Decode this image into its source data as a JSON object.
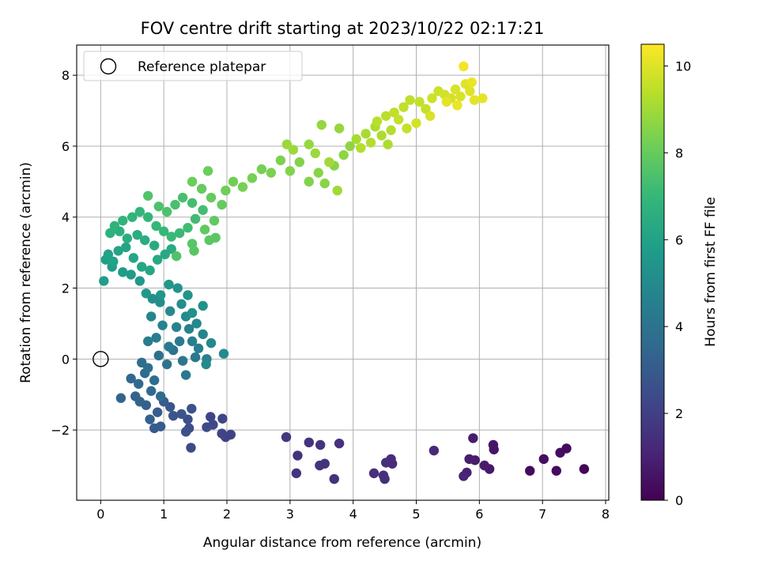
{
  "chart_data": {
    "type": "scatter",
    "title": "FOV centre drift starting at 2023/10/22 02:17:21",
    "xlabel": "Angular distance from reference (arcmin)",
    "ylabel": "Rotation from reference (arcmin)",
    "xlim": [
      -0.38,
      8.05
    ],
    "ylim": [
      -3.98,
      8.85
    ],
    "xticks": [
      0,
      1,
      2,
      3,
      4,
      5,
      6,
      7,
      8
    ],
    "yticks": [
      -2,
      0,
      2,
      4,
      6,
      8
    ],
    "xtick_labels": [
      "0",
      "1",
      "2",
      "3",
      "4",
      "5",
      "6",
      "7",
      "8"
    ],
    "ytick_labels": [
      "−2",
      "0",
      "2",
      "4",
      "6",
      "8"
    ],
    "grid": true,
    "colormap": "viridis",
    "colormap_stops": [
      "#440154",
      "#482878",
      "#3e4989",
      "#31688e",
      "#26828e",
      "#1f9e89",
      "#35b779",
      "#6ece58",
      "#b5de2b",
      "#fde725"
    ],
    "colorbar": {
      "label": "Hours from first FF file",
      "range": [
        0,
        10.5
      ],
      "ticks": [
        0,
        2,
        4,
        6,
        8,
        10
      ],
      "tick_labels": [
        "0",
        "2",
        "4",
        "6",
        "8",
        "10"
      ]
    },
    "legend": {
      "position": "top-left",
      "entries": [
        {
          "label": "Reference platepar",
          "marker": "open-circle"
        }
      ]
    },
    "reference_point": {
      "x": 0,
      "y": 0
    },
    "series": [
      {
        "color_by": "hours",
        "points": [
          [
            7.66,
            -3.1,
            0.1
          ],
          [
            7.38,
            -2.52,
            0.3
          ],
          [
            7.28,
            -2.64,
            0.35
          ],
          [
            7.22,
            -3.15,
            0.3
          ],
          [
            7.02,
            -2.82,
            0.4
          ],
          [
            6.8,
            -3.15,
            0.3
          ],
          [
            6.22,
            -2.42,
            0.6
          ],
          [
            6.23,
            -2.55,
            0.6
          ],
          [
            6.16,
            -3.1,
            0.7
          ],
          [
            6.08,
            -3.0,
            0.8
          ],
          [
            5.9,
            -2.23,
            0.8
          ],
          [
            5.93,
            -2.85,
            0.8
          ],
          [
            5.84,
            -2.82,
            0.9
          ],
          [
            5.8,
            -3.2,
            1.0
          ],
          [
            5.75,
            -3.3,
            1.1
          ],
          [
            5.28,
            -2.58,
            1.2
          ],
          [
            4.6,
            -2.82,
            1.3
          ],
          [
            4.62,
            -2.95,
            1.3
          ],
          [
            4.52,
            -2.92,
            1.4
          ],
          [
            4.5,
            -3.38,
            1.4
          ],
          [
            4.48,
            -3.28,
            1.4
          ],
          [
            4.33,
            -3.22,
            1.4
          ],
          [
            3.78,
            -2.38,
            1.5
          ],
          [
            3.7,
            -3.38,
            1.5
          ],
          [
            3.55,
            -2.95,
            1.6
          ],
          [
            3.47,
            -3.0,
            1.6
          ],
          [
            3.48,
            -2.42,
            1.6
          ],
          [
            3.3,
            -2.35,
            1.6
          ],
          [
            3.12,
            -2.72,
            1.6
          ],
          [
            3.1,
            -3.22,
            1.6
          ],
          [
            2.94,
            -2.2,
            1.7
          ],
          [
            2.06,
            -2.13,
            2.1
          ],
          [
            1.98,
            -2.2,
            2.1
          ],
          [
            1.92,
            -2.1,
            2.2
          ],
          [
            1.93,
            -1.68,
            2.2
          ],
          [
            1.74,
            -1.63,
            2.2
          ],
          [
            1.78,
            -1.85,
            2.3
          ],
          [
            1.68,
            -1.92,
            2.4
          ],
          [
            1.43,
            -2.5,
            2.4
          ],
          [
            1.4,
            -1.95,
            2.5
          ],
          [
            1.35,
            -2.05,
            2.6
          ],
          [
            1.38,
            -1.7,
            2.6
          ],
          [
            1.44,
            -1.4,
            2.7
          ],
          [
            1.28,
            -1.55,
            2.8
          ],
          [
            1.15,
            -1.6,
            2.8
          ],
          [
            1.1,
            -1.35,
            2.9
          ],
          [
            1.0,
            -1.2,
            3.0
          ],
          [
            0.95,
            -1.9,
            3.0
          ],
          [
            0.85,
            -1.95,
            3.1
          ],
          [
            0.9,
            -1.5,
            3.1
          ],
          [
            0.78,
            -1.7,
            3.2
          ],
          [
            0.72,
            -1.3,
            3.2
          ],
          [
            0.62,
            -1.2,
            3.3
          ],
          [
            0.55,
            -1.05,
            3.3
          ],
          [
            0.32,
            -1.1,
            3.4
          ],
          [
            0.48,
            -0.55,
            3.5
          ],
          [
            0.6,
            -0.7,
            3.5
          ],
          [
            0.7,
            -0.4,
            3.6
          ],
          [
            0.8,
            -0.9,
            3.6
          ],
          [
            0.85,
            -0.6,
            3.7
          ],
          [
            0.95,
            -1.05,
            3.7
          ],
          [
            0.65,
            -0.1,
            3.8
          ],
          [
            0.75,
            -0.25,
            3.8
          ],
          [
            0.92,
            0.1,
            3.9
          ],
          [
            1.05,
            -0.15,
            4.0
          ],
          [
            1.15,
            0.25,
            4.0
          ],
          [
            1.3,
            -0.05,
            4.1
          ],
          [
            1.35,
            -0.45,
            4.2
          ],
          [
            1.5,
            0.05,
            4.2
          ],
          [
            1.25,
            0.5,
            4.3
          ],
          [
            1.08,
            0.35,
            4.3
          ],
          [
            0.88,
            0.6,
            4.4
          ],
          [
            0.75,
            0.5,
            4.4
          ],
          [
            1.45,
            0.5,
            4.5
          ],
          [
            1.55,
            0.3,
            4.5
          ],
          [
            1.68,
            0.0,
            4.6
          ],
          [
            1.4,
            0.85,
            4.6
          ],
          [
            1.2,
            0.9,
            4.7
          ],
          [
            0.98,
            0.95,
            4.7
          ],
          [
            0.8,
            1.2,
            4.8
          ],
          [
            1.62,
            0.7,
            4.8
          ],
          [
            1.75,
            0.45,
            4.9
          ],
          [
            1.52,
            1.0,
            4.9
          ],
          [
            1.35,
            1.2,
            5.0
          ],
          [
            1.1,
            1.35,
            5.0
          ],
          [
            1.95,
            0.15,
            5.0
          ],
          [
            1.67,
            -0.15,
            5.1
          ],
          [
            0.94,
            1.6,
            5.1
          ],
          [
            0.82,
            1.7,
            5.2
          ],
          [
            1.28,
            1.55,
            5.2
          ],
          [
            1.45,
            1.3,
            5.3
          ],
          [
            1.62,
            1.5,
            5.3
          ],
          [
            1.38,
            1.8,
            5.4
          ],
          [
            1.22,
            2.0,
            5.4
          ],
          [
            1.08,
            2.1,
            5.5
          ],
          [
            0.95,
            1.8,
            5.5
          ],
          [
            0.72,
            1.85,
            5.6
          ],
          [
            0.62,
            2.2,
            5.6
          ],
          [
            0.48,
            2.38,
            5.7
          ],
          [
            0.35,
            2.45,
            5.8
          ],
          [
            0.18,
            2.6,
            5.8
          ],
          [
            0.08,
            2.8,
            5.9
          ],
          [
            0.05,
            2.2,
            5.9
          ],
          [
            0.12,
            2.95,
            6.0
          ],
          [
            0.2,
            2.75,
            6.0
          ],
          [
            0.28,
            3.05,
            6.1
          ],
          [
            0.4,
            3.15,
            6.1
          ],
          [
            0.52,
            2.85,
            6.2
          ],
          [
            0.65,
            2.6,
            6.2
          ],
          [
            0.78,
            2.5,
            6.2
          ],
          [
            0.9,
            2.8,
            6.3
          ],
          [
            1.02,
            2.95,
            6.3
          ],
          [
            1.12,
            3.1,
            6.4
          ],
          [
            0.85,
            3.2,
            6.4
          ],
          [
            0.7,
            3.35,
            6.5
          ],
          [
            0.58,
            3.5,
            6.5
          ],
          [
            0.42,
            3.4,
            6.6
          ],
          [
            0.3,
            3.6,
            6.6
          ],
          [
            0.15,
            3.55,
            6.7
          ],
          [
            0.22,
            3.75,
            6.7
          ],
          [
            0.35,
            3.9,
            6.8
          ],
          [
            0.5,
            4.0,
            6.8
          ],
          [
            0.62,
            4.15,
            6.9
          ],
          [
            0.75,
            4.0,
            6.9
          ],
          [
            0.88,
            3.75,
            7.0
          ],
          [
            1.0,
            3.6,
            7.0
          ],
          [
            1.12,
            3.45,
            7.1
          ],
          [
            1.25,
            3.55,
            7.1
          ],
          [
            1.38,
            3.7,
            7.2
          ],
          [
            1.5,
            3.95,
            7.2
          ],
          [
            1.62,
            4.2,
            7.3
          ],
          [
            1.45,
            4.4,
            7.3
          ],
          [
            1.3,
            4.55,
            7.4
          ],
          [
            1.18,
            4.35,
            7.4
          ],
          [
            1.05,
            4.15,
            7.5
          ],
          [
            0.92,
            4.3,
            7.5
          ],
          [
            0.75,
            4.6,
            7.6
          ],
          [
            1.2,
            2.9,
            7.6
          ],
          [
            1.45,
            3.25,
            7.7
          ],
          [
            1.48,
            3.05,
            7.7
          ],
          [
            1.72,
            3.35,
            7.8
          ],
          [
            1.82,
            3.42,
            7.8
          ],
          [
            1.65,
            3.65,
            7.9
          ],
          [
            1.8,
            3.9,
            7.9
          ],
          [
            1.92,
            4.35,
            8.0
          ],
          [
            1.75,
            4.55,
            8.0
          ],
          [
            1.6,
            4.8,
            8.0
          ],
          [
            1.45,
            5.0,
            8.1
          ],
          [
            1.7,
            5.3,
            8.1
          ],
          [
            1.98,
            4.75,
            8.2
          ],
          [
            2.1,
            5.0,
            8.2
          ],
          [
            2.25,
            4.85,
            8.3
          ],
          [
            2.4,
            5.1,
            8.3
          ],
          [
            2.55,
            5.35,
            8.3
          ],
          [
            2.7,
            5.25,
            8.4
          ],
          [
            2.85,
            5.6,
            8.4
          ],
          [
            3.0,
            5.3,
            8.5
          ],
          [
            3.15,
            5.55,
            8.5
          ],
          [
            3.3,
            5.0,
            8.5
          ],
          [
            3.45,
            5.25,
            8.6
          ],
          [
            3.55,
            4.95,
            8.6
          ],
          [
            3.7,
            5.45,
            8.6
          ],
          [
            3.85,
            5.75,
            8.7
          ],
          [
            3.95,
            6.0,
            8.7
          ],
          [
            3.5,
            6.6,
            8.8
          ],
          [
            3.78,
            6.5,
            8.8
          ],
          [
            3.3,
            6.05,
            8.8
          ],
          [
            3.05,
            5.9,
            8.9
          ],
          [
            2.95,
            6.05,
            8.9
          ],
          [
            3.4,
            5.8,
            8.9
          ],
          [
            3.62,
            5.55,
            9.0
          ],
          [
            3.75,
            4.75,
            9.0
          ],
          [
            4.05,
            6.2,
            9.1
          ],
          [
            4.2,
            6.35,
            9.1
          ],
          [
            4.35,
            6.55,
            9.2
          ],
          [
            4.45,
            6.3,
            9.2
          ],
          [
            4.55,
            6.05,
            9.2
          ],
          [
            4.6,
            6.45,
            9.3
          ],
          [
            4.28,
            6.1,
            9.3
          ],
          [
            4.12,
            5.95,
            9.3
          ],
          [
            4.38,
            6.7,
            9.4
          ],
          [
            4.52,
            6.85,
            9.4
          ],
          [
            4.65,
            6.95,
            9.5
          ],
          [
            4.8,
            7.1,
            9.5
          ],
          [
            4.9,
            7.3,
            9.5
          ],
          [
            5.05,
            7.25,
            9.6
          ],
          [
            5.15,
            7.05,
            9.6
          ],
          [
            5.25,
            7.35,
            9.7
          ],
          [
            5.35,
            7.55,
            9.7
          ],
          [
            5.45,
            7.45,
            9.8
          ],
          [
            5.55,
            7.35,
            9.8
          ],
          [
            5.62,
            7.6,
            9.9
          ],
          [
            5.7,
            7.4,
            9.9
          ],
          [
            5.78,
            7.75,
            10.0
          ],
          [
            5.85,
            7.55,
            10.0
          ],
          [
            5.92,
            7.3,
            10.1
          ],
          [
            6.05,
            7.35,
            10.1
          ],
          [
            5.88,
            7.8,
            10.2
          ],
          [
            5.75,
            8.25,
            10.3
          ],
          [
            5.65,
            7.15,
            10.2
          ],
          [
            5.48,
            7.25,
            10.1
          ],
          [
            5.22,
            6.85,
            9.9
          ],
          [
            5.0,
            6.65,
            9.8
          ],
          [
            4.85,
            6.5,
            9.6
          ],
          [
            4.72,
            6.75,
            9.6
          ]
        ]
      }
    ]
  }
}
